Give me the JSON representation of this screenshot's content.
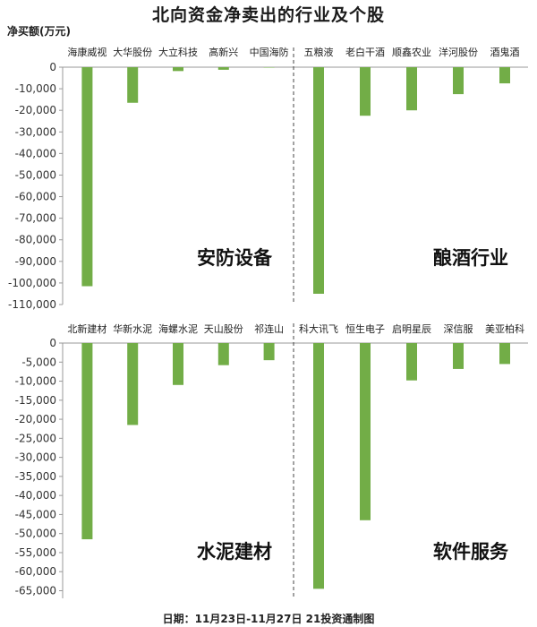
{
  "title": "北向资金净卖出的行业及个股",
  "ylabel": "净买额(万元)",
  "footer": "日期：11月23日-11月27日 21投资通制图",
  "colors": {
    "bar": "#72ad47",
    "axis": "#999999",
    "divider": "#444444"
  },
  "chart_data": [
    {
      "type": "bar",
      "panel": "top",
      "ylim": [
        -110000,
        0
      ],
      "yticks": [
        0,
        -10000,
        -20000,
        -30000,
        -40000,
        -50000,
        -60000,
        -70000,
        -80000,
        -90000,
        -100000,
        -110000
      ],
      "groups": [
        {
          "label": "安防设备",
          "categories": [
            "海康威视",
            "大华股份",
            "大立科技",
            "高新兴",
            "中国海防"
          ],
          "values": [
            -101500,
            -16500,
            -1800,
            -1200,
            -200
          ]
        },
        {
          "label": "酿酒行业",
          "categories": [
            "五粮液",
            "老白干酒",
            "顺鑫农业",
            "洋河股份",
            "酒鬼酒"
          ],
          "values": [
            -105000,
            -22500,
            -20000,
            -12500,
            -7500
          ]
        }
      ]
    },
    {
      "type": "bar",
      "panel": "bottom",
      "ylim": [
        -67000,
        0
      ],
      "yticks": [
        0,
        -5000,
        -10000,
        -15000,
        -20000,
        -25000,
        -30000,
        -35000,
        -40000,
        -45000,
        -50000,
        -55000,
        -60000,
        -65000
      ],
      "groups": [
        {
          "label": "水泥建材",
          "categories": [
            "北新建材",
            "华新水泥",
            "海螺水泥",
            "天山股份",
            "祁连山"
          ],
          "values": [
            -51500,
            -21500,
            -11000,
            -5800,
            -4500
          ]
        },
        {
          "label": "软件服务",
          "categories": [
            "科大讯飞",
            "恒生电子",
            "启明星辰",
            "深信服",
            "美亚柏科"
          ],
          "values": [
            -64500,
            -46500,
            -9800,
            -6800,
            -5500
          ]
        }
      ]
    }
  ]
}
